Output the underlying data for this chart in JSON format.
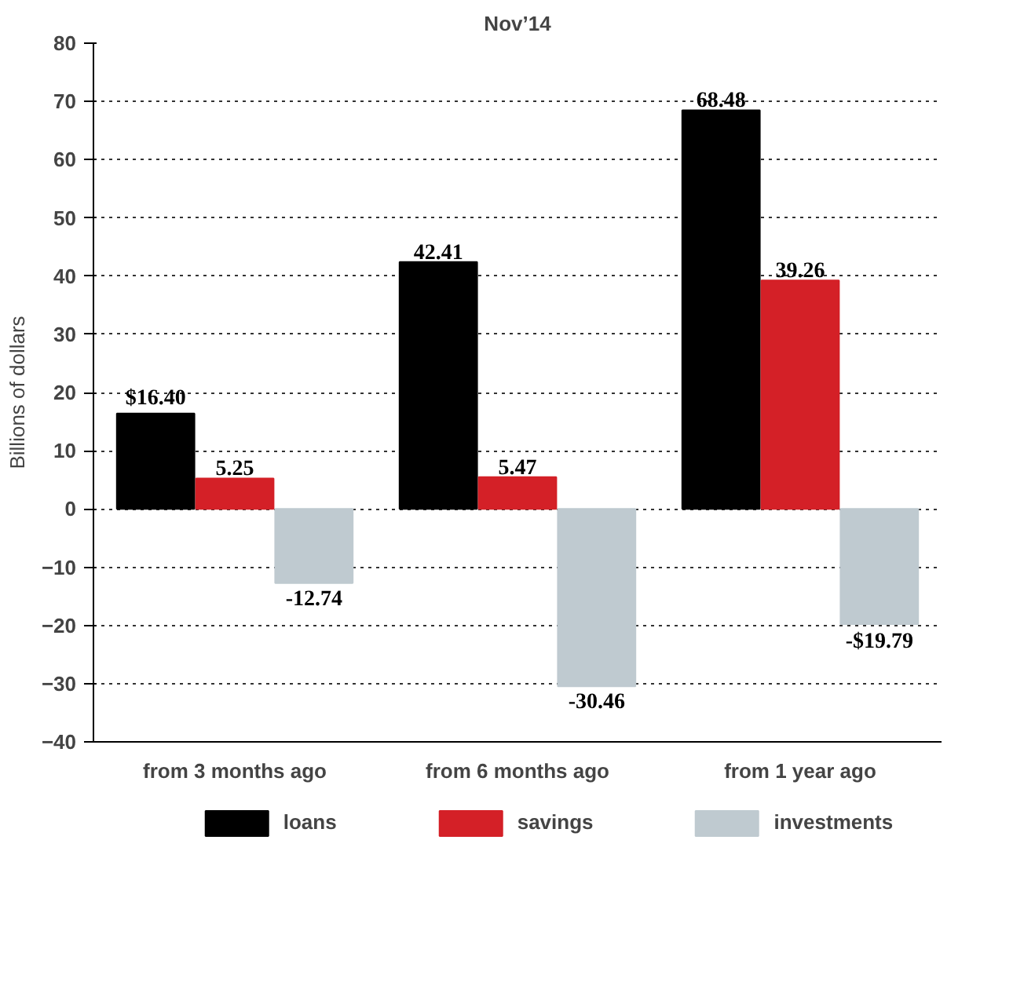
{
  "chart_data": {
    "type": "bar",
    "title": "Nov’14",
    "ylabel": "Billions of dollars",
    "categories": [
      "from 3 months ago",
      "from 6 months ago",
      "from 1 year ago"
    ],
    "series": [
      {
        "name": "loans",
        "color": "#000000",
        "values": [
          16.4,
          42.41,
          68.48
        ],
        "value_labels": [
          "$16.40",
          "42.41",
          "68.48"
        ]
      },
      {
        "name": "savings",
        "color": "#d42027",
        "values": [
          5.25,
          5.47,
          39.26
        ],
        "value_labels": [
          "5.25",
          "5.47",
          "39.26"
        ]
      },
      {
        "name": "investments",
        "color": "#bfcad0",
        "values": [
          -12.74,
          -30.46,
          -19.79
        ],
        "value_labels": [
          "-12.74",
          "-30.46",
          "-$19.79"
        ]
      }
    ],
    "ylim": [
      -40,
      80
    ],
    "yticks": [
      -40,
      -30,
      -20,
      -10,
      0,
      10,
      20,
      30,
      40,
      50,
      60,
      70,
      80
    ],
    "grid": "y",
    "legend": "bottom"
  }
}
